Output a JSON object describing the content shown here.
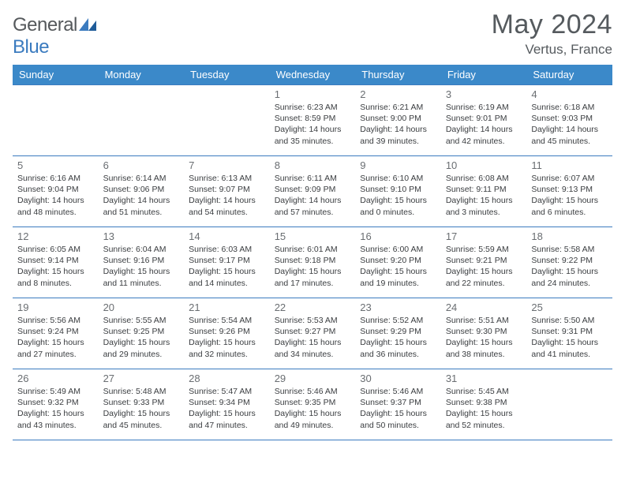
{
  "brand": {
    "part1": "General",
    "part2": "Blue"
  },
  "title": "May 2024",
  "location": "Vertus, France",
  "colors": {
    "header_bg": "#3b89c9",
    "header_fg": "#ffffff",
    "rule": "#3b7bbf",
    "text": "#3a3d40",
    "muted": "#6a6e72",
    "title": "#555a5e"
  },
  "weekdays": [
    "Sunday",
    "Monday",
    "Tuesday",
    "Wednesday",
    "Thursday",
    "Friday",
    "Saturday"
  ],
  "grid": {
    "start_weekday_index": 3,
    "rows": 5,
    "cols": 7
  },
  "days": [
    {
      "n": 1,
      "sunrise": "6:23 AM",
      "sunset": "8:59 PM",
      "daylight": "14 hours and 35 minutes."
    },
    {
      "n": 2,
      "sunrise": "6:21 AM",
      "sunset": "9:00 PM",
      "daylight": "14 hours and 39 minutes."
    },
    {
      "n": 3,
      "sunrise": "6:19 AM",
      "sunset": "9:01 PM",
      "daylight": "14 hours and 42 minutes."
    },
    {
      "n": 4,
      "sunrise": "6:18 AM",
      "sunset": "9:03 PM",
      "daylight": "14 hours and 45 minutes."
    },
    {
      "n": 5,
      "sunrise": "6:16 AM",
      "sunset": "9:04 PM",
      "daylight": "14 hours and 48 minutes."
    },
    {
      "n": 6,
      "sunrise": "6:14 AM",
      "sunset": "9:06 PM",
      "daylight": "14 hours and 51 minutes."
    },
    {
      "n": 7,
      "sunrise": "6:13 AM",
      "sunset": "9:07 PM",
      "daylight": "14 hours and 54 minutes."
    },
    {
      "n": 8,
      "sunrise": "6:11 AM",
      "sunset": "9:09 PM",
      "daylight": "14 hours and 57 minutes."
    },
    {
      "n": 9,
      "sunrise": "6:10 AM",
      "sunset": "9:10 PM",
      "daylight": "15 hours and 0 minutes."
    },
    {
      "n": 10,
      "sunrise": "6:08 AM",
      "sunset": "9:11 PM",
      "daylight": "15 hours and 3 minutes."
    },
    {
      "n": 11,
      "sunrise": "6:07 AM",
      "sunset": "9:13 PM",
      "daylight": "15 hours and 6 minutes."
    },
    {
      "n": 12,
      "sunrise": "6:05 AM",
      "sunset": "9:14 PM",
      "daylight": "15 hours and 8 minutes."
    },
    {
      "n": 13,
      "sunrise": "6:04 AM",
      "sunset": "9:16 PM",
      "daylight": "15 hours and 11 minutes."
    },
    {
      "n": 14,
      "sunrise": "6:03 AM",
      "sunset": "9:17 PM",
      "daylight": "15 hours and 14 minutes."
    },
    {
      "n": 15,
      "sunrise": "6:01 AM",
      "sunset": "9:18 PM",
      "daylight": "15 hours and 17 minutes."
    },
    {
      "n": 16,
      "sunrise": "6:00 AM",
      "sunset": "9:20 PM",
      "daylight": "15 hours and 19 minutes."
    },
    {
      "n": 17,
      "sunrise": "5:59 AM",
      "sunset": "9:21 PM",
      "daylight": "15 hours and 22 minutes."
    },
    {
      "n": 18,
      "sunrise": "5:58 AM",
      "sunset": "9:22 PM",
      "daylight": "15 hours and 24 minutes."
    },
    {
      "n": 19,
      "sunrise": "5:56 AM",
      "sunset": "9:24 PM",
      "daylight": "15 hours and 27 minutes."
    },
    {
      "n": 20,
      "sunrise": "5:55 AM",
      "sunset": "9:25 PM",
      "daylight": "15 hours and 29 minutes."
    },
    {
      "n": 21,
      "sunrise": "5:54 AM",
      "sunset": "9:26 PM",
      "daylight": "15 hours and 32 minutes."
    },
    {
      "n": 22,
      "sunrise": "5:53 AM",
      "sunset": "9:27 PM",
      "daylight": "15 hours and 34 minutes."
    },
    {
      "n": 23,
      "sunrise": "5:52 AM",
      "sunset": "9:29 PM",
      "daylight": "15 hours and 36 minutes."
    },
    {
      "n": 24,
      "sunrise": "5:51 AM",
      "sunset": "9:30 PM",
      "daylight": "15 hours and 38 minutes."
    },
    {
      "n": 25,
      "sunrise": "5:50 AM",
      "sunset": "9:31 PM",
      "daylight": "15 hours and 41 minutes."
    },
    {
      "n": 26,
      "sunrise": "5:49 AM",
      "sunset": "9:32 PM",
      "daylight": "15 hours and 43 minutes."
    },
    {
      "n": 27,
      "sunrise": "5:48 AM",
      "sunset": "9:33 PM",
      "daylight": "15 hours and 45 minutes."
    },
    {
      "n": 28,
      "sunrise": "5:47 AM",
      "sunset": "9:34 PM",
      "daylight": "15 hours and 47 minutes."
    },
    {
      "n": 29,
      "sunrise": "5:46 AM",
      "sunset": "9:35 PM",
      "daylight": "15 hours and 49 minutes."
    },
    {
      "n": 30,
      "sunrise": "5:46 AM",
      "sunset": "9:37 PM",
      "daylight": "15 hours and 50 minutes."
    },
    {
      "n": 31,
      "sunrise": "5:45 AM",
      "sunset": "9:38 PM",
      "daylight": "15 hours and 52 minutes."
    }
  ],
  "labels": {
    "sunrise": "Sunrise:",
    "sunset": "Sunset:",
    "daylight": "Daylight:"
  }
}
